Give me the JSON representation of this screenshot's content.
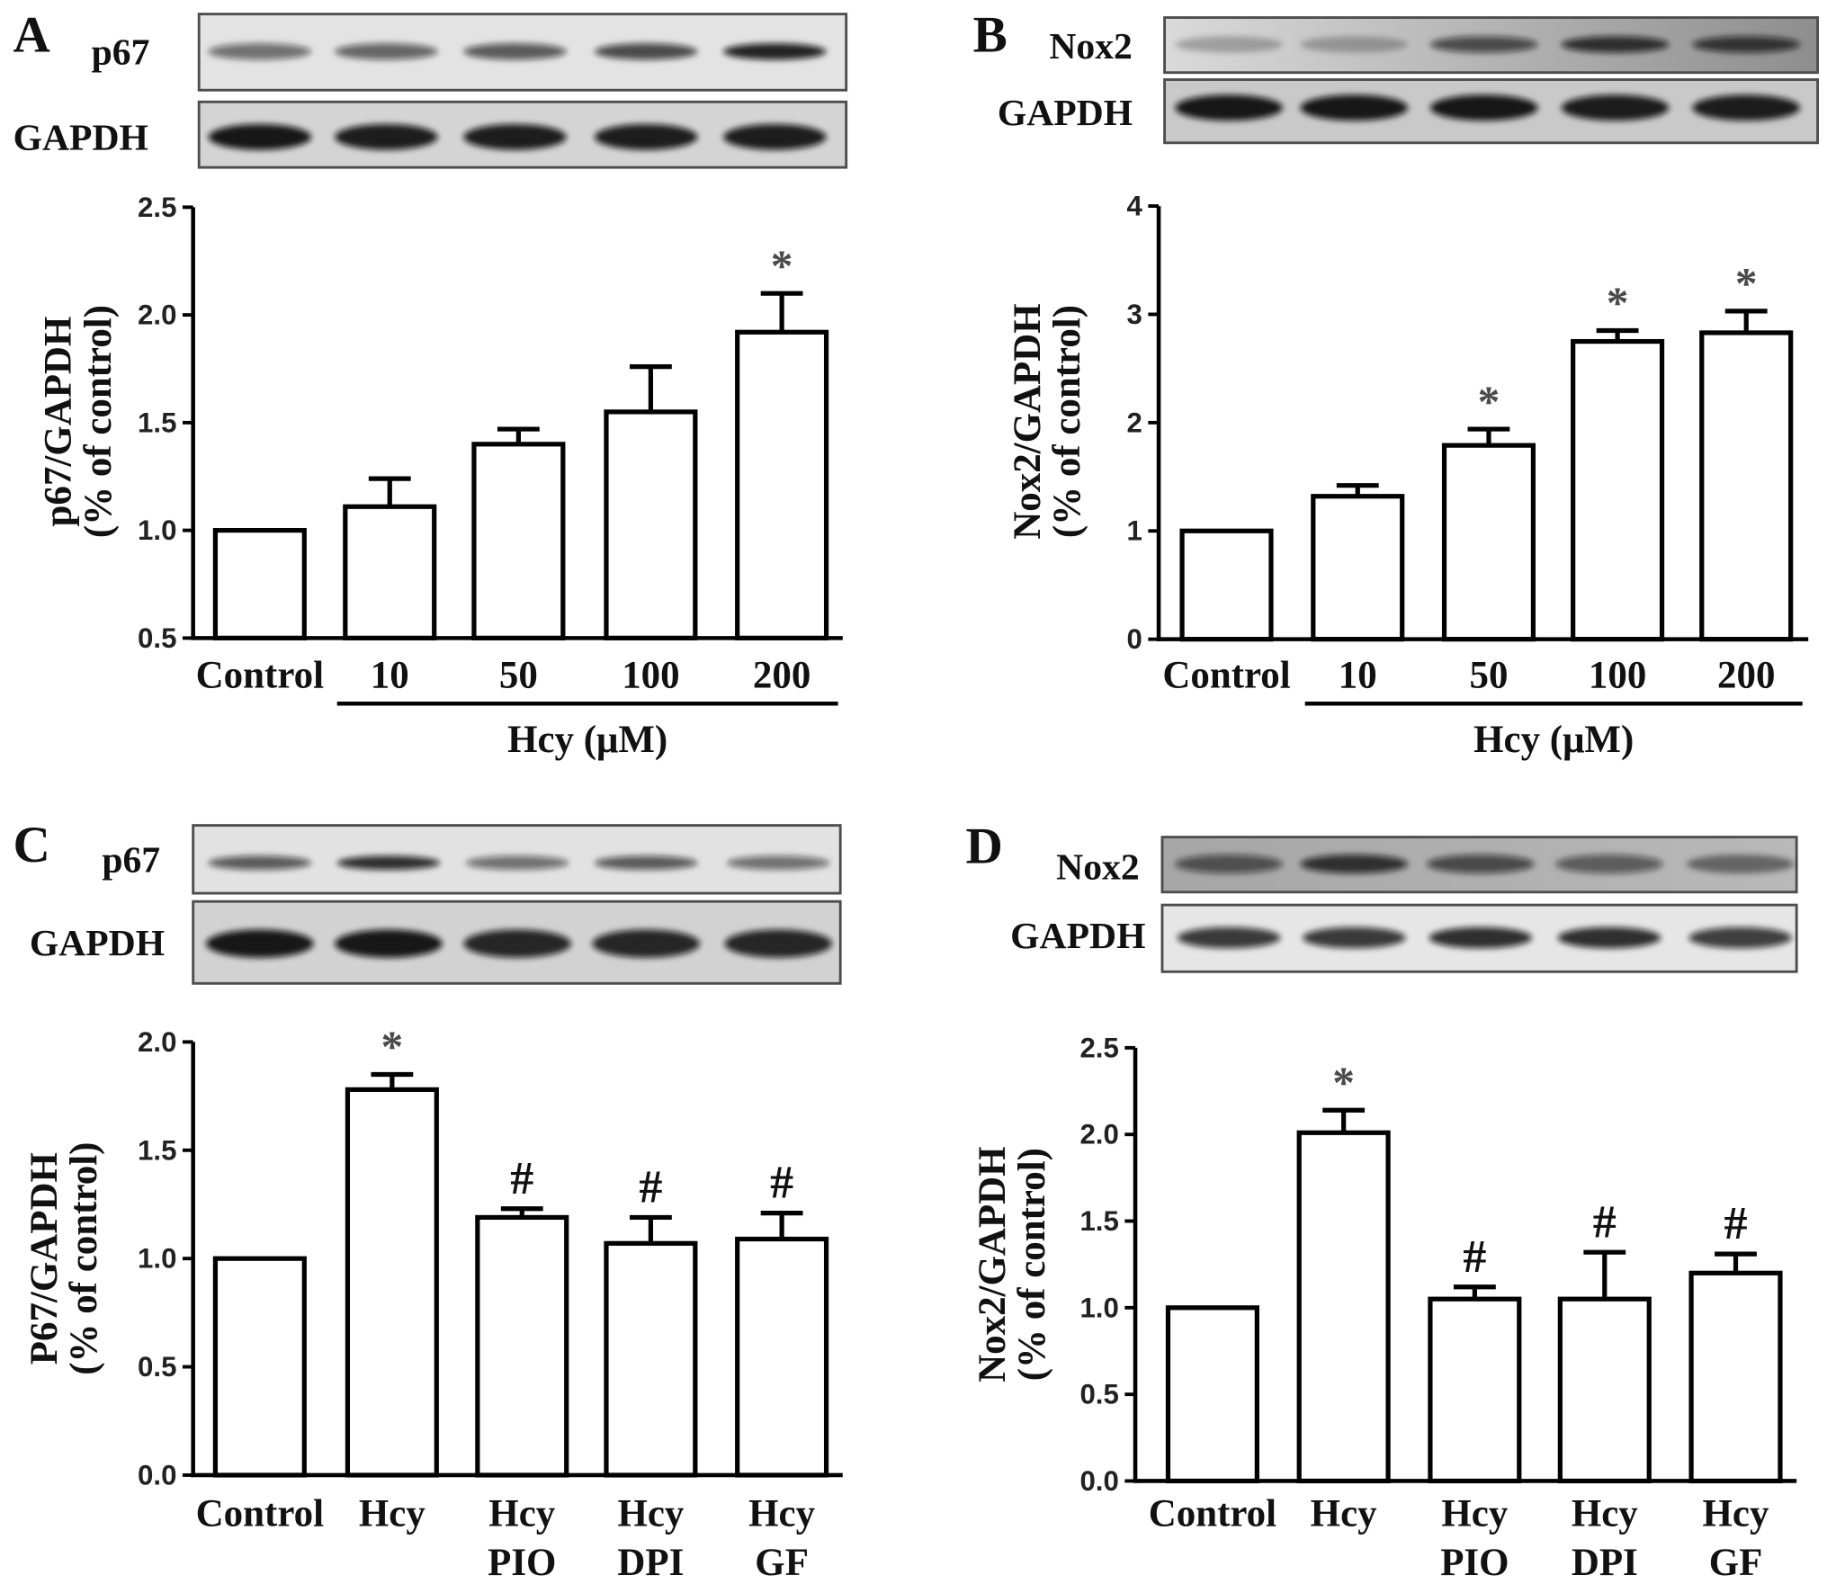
{
  "figure": {
    "panels": [
      {
        "letter": "A",
        "blots": [
          {
            "label": "p67",
            "band_intensity": [
              0.55,
              0.6,
              0.65,
              0.72,
              0.9
            ]
          },
          {
            "label": "GAPDH",
            "band_intensity": [
              0.95,
              0.92,
              0.92,
              0.92,
              0.92
            ]
          }
        ]
      },
      {
        "letter": "B",
        "blots": [
          {
            "label": "Nox2",
            "band_intensity": [
              0.25,
              0.25,
              0.65,
              0.8,
              0.75
            ]
          },
          {
            "label": "GAPDH",
            "band_intensity": [
              0.95,
              0.95,
              0.95,
              0.92,
              0.92
            ]
          }
        ]
      },
      {
        "letter": "C",
        "blots": [
          {
            "label": "p67",
            "band_intensity": [
              0.65,
              0.85,
              0.55,
              0.65,
              0.55
            ]
          },
          {
            "label": "GAPDH",
            "band_intensity": [
              0.95,
              0.95,
              0.88,
              0.88,
              0.88
            ]
          }
        ]
      },
      {
        "letter": "D",
        "blots": [
          {
            "label": "Nox2",
            "band_intensity": [
              0.6,
              0.8,
              0.65,
              0.55,
              0.45
            ]
          },
          {
            "label": "GAPDH",
            "band_intensity": [
              0.8,
              0.8,
              0.85,
              0.85,
              0.78
            ]
          }
        ]
      }
    ]
  },
  "chart_data": [
    {
      "type": "bar",
      "categories": [
        [
          "Control"
        ],
        [
          "10"
        ],
        [
          "50"
        ],
        [
          "100"
        ],
        [
          "200"
        ]
      ],
      "values": [
        1.0,
        1.11,
        1.4,
        1.55,
        1.92
      ],
      "errors": [
        0,
        0.13,
        0.07,
        0.21,
        0.18
      ],
      "markers": [
        "",
        "",
        "",
        "",
        "*"
      ],
      "xlabel": "Hcy (μM)",
      "xlabel_span": [
        1,
        4
      ],
      "ylabel": [
        "p67/GAPDH",
        "(% of control)"
      ],
      "ylim": [
        0.5,
        2.5
      ],
      "yticks": [
        0.5,
        1.0,
        1.5,
        2.0,
        2.5
      ],
      "ytick_labels": [
        "0.5",
        "1.0",
        "1.5",
        "2.0",
        "2.5"
      ],
      "grid": false,
      "bar_color": "#ffffff",
      "edge_color": "#000000"
    },
    {
      "type": "bar",
      "categories": [
        [
          "Control"
        ],
        [
          "10"
        ],
        [
          "50"
        ],
        [
          "100"
        ],
        [
          "200"
        ]
      ],
      "values": [
        1.0,
        1.32,
        1.79,
        2.75,
        2.83
      ],
      "errors": [
        0,
        0.1,
        0.15,
        0.1,
        0.2
      ],
      "markers": [
        "",
        "",
        "*",
        "*",
        "*"
      ],
      "xlabel": "Hcy (μM)",
      "xlabel_span": [
        1,
        4
      ],
      "ylabel": [
        "Nox2/GAPDH",
        "(% of control)"
      ],
      "ylim": [
        0,
        4
      ],
      "yticks": [
        0,
        1,
        2,
        3,
        4
      ],
      "ytick_labels": [
        "0",
        "1",
        "2",
        "3",
        "4"
      ],
      "grid": false,
      "bar_color": "#ffffff",
      "edge_color": "#000000"
    },
    {
      "type": "bar",
      "categories": [
        [
          "Control"
        ],
        [
          "Hcy"
        ],
        [
          "Hcy",
          "PIO"
        ],
        [
          "Hcy",
          "DPI"
        ],
        [
          "Hcy",
          "GF"
        ]
      ],
      "values": [
        1.0,
        1.78,
        1.19,
        1.07,
        1.09
      ],
      "errors": [
        0,
        0.07,
        0.04,
        0.12,
        0.12
      ],
      "markers": [
        "",
        "*",
        "#",
        "#",
        "#"
      ],
      "ylabel": [
        "P67/GAPDH",
        "(% of control)"
      ],
      "ylim": [
        0,
        2.0
      ],
      "yticks": [
        0.0,
        0.5,
        1.0,
        1.5,
        2.0
      ],
      "ytick_labels": [
        "0.0",
        "0.5",
        "1.0",
        "1.5",
        "2.0"
      ],
      "grid": false,
      "bar_color": "#ffffff",
      "edge_color": "#000000"
    },
    {
      "type": "bar",
      "categories": [
        [
          "Control"
        ],
        [
          "Hcy"
        ],
        [
          "Hcy",
          "PIO"
        ],
        [
          "Hcy",
          "DPI"
        ],
        [
          "Hcy",
          "GF"
        ]
      ],
      "values": [
        1.0,
        2.01,
        1.05,
        1.05,
        1.2
      ],
      "errors": [
        0,
        0.13,
        0.07,
        0.27,
        0.11
      ],
      "markers": [
        "",
        "*",
        "#",
        "#",
        "#"
      ],
      "ylabel": [
        "Nox2/GAPDH",
        "(% of control)"
      ],
      "ylim": [
        0,
        2.5
      ],
      "yticks": [
        0.0,
        0.5,
        1.0,
        1.5,
        2.0,
        2.5
      ],
      "ytick_labels": [
        "0.0",
        "0.5",
        "1.0",
        "1.5",
        "2.0",
        "2.5"
      ],
      "grid": false,
      "bar_color": "#ffffff",
      "edge_color": "#000000"
    }
  ]
}
